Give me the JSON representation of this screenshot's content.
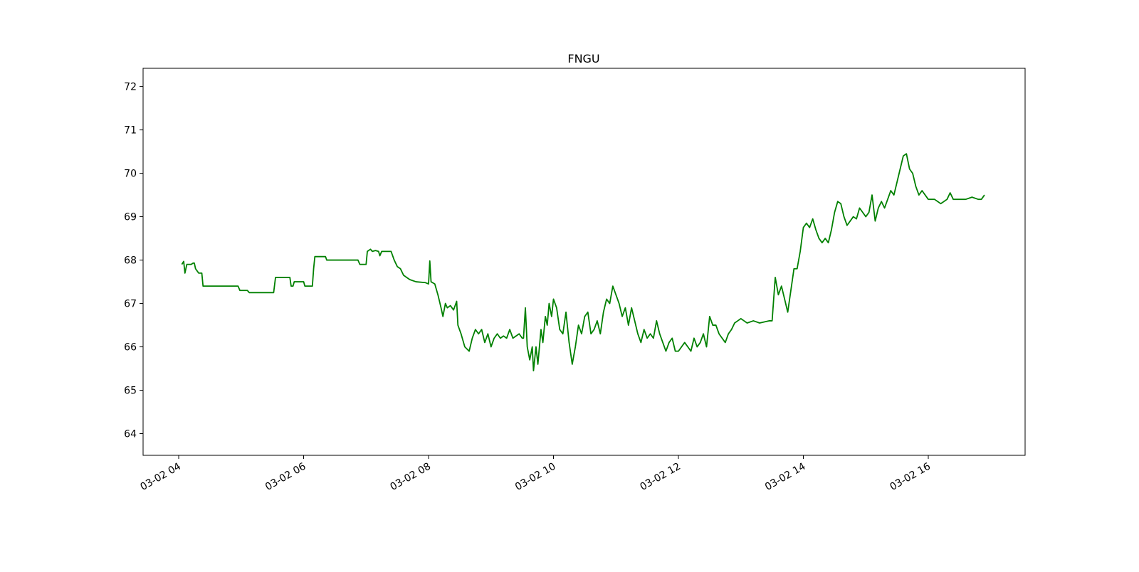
{
  "chart_data": {
    "type": "line",
    "title": "FNGU",
    "x": [
      4.05,
      4.08,
      4.1,
      4.13,
      4.2,
      4.23,
      4.25,
      4.27,
      4.32,
      4.37,
      4.39,
      4.95,
      4.98,
      5.1,
      5.13,
      5.52,
      5.55,
      5.78,
      5.8,
      5.83,
      5.85,
      6.0,
      6.02,
      6.14,
      6.16,
      6.18,
      6.35,
      6.37,
      6.87,
      6.9,
      7.0,
      7.02,
      7.07,
      7.1,
      7.15,
      7.2,
      7.22,
      7.25,
      7.4,
      7.45,
      7.5,
      7.55,
      7.6,
      7.65,
      7.7,
      7.8,
      7.95,
      8.0,
      8.02,
      8.04,
      8.1,
      8.15,
      8.2,
      8.23,
      8.27,
      8.3,
      8.35,
      8.4,
      8.45,
      8.47,
      8.52,
      8.58,
      8.65,
      8.7,
      8.75,
      8.8,
      8.85,
      8.9,
      8.95,
      9.0,
      9.05,
      9.1,
      9.15,
      9.2,
      9.25,
      9.3,
      9.35,
      9.45,
      9.5,
      9.52,
      9.55,
      9.58,
      9.62,
      9.66,
      9.68,
      9.72,
      9.75,
      9.8,
      9.83,
      9.87,
      9.9,
      9.93,
      9.97,
      10.0,
      10.05,
      10.1,
      10.15,
      10.2,
      10.25,
      10.3,
      10.35,
      10.4,
      10.45,
      10.5,
      10.55,
      10.6,
      10.65,
      10.7,
      10.75,
      10.8,
      10.85,
      10.9,
      10.95,
      11.0,
      11.05,
      11.1,
      11.15,
      11.2,
      11.25,
      11.3,
      11.35,
      11.4,
      11.45,
      11.5,
      11.55,
      11.6,
      11.65,
      11.7,
      11.75,
      11.8,
      11.85,
      11.9,
      11.95,
      12.0,
      12.05,
      12.1,
      12.15,
      12.2,
      12.25,
      12.3,
      12.35,
      12.4,
      12.45,
      12.5,
      12.55,
      12.6,
      12.65,
      12.7,
      12.75,
      12.8,
      12.85,
      12.9,
      12.95,
      13.0,
      13.05,
      13.1,
      13.2,
      13.3,
      13.45,
      13.5,
      13.55,
      13.6,
      13.65,
      13.7,
      13.75,
      13.8,
      13.85,
      13.9,
      13.95,
      14.0,
      14.05,
      14.1,
      14.15,
      14.2,
      14.25,
      14.3,
      14.35,
      14.4,
      14.45,
      14.5,
      14.55,
      14.6,
      14.65,
      14.7,
      14.75,
      14.8,
      14.85,
      14.9,
      14.95,
      15.0,
      15.05,
      15.1,
      15.15,
      15.2,
      15.25,
      15.3,
      15.35,
      15.4,
      15.45,
      15.5,
      15.55,
      15.6,
      15.65,
      15.7,
      15.75,
      15.8,
      15.85,
      15.9,
      15.95,
      16.0,
      16.1,
      16.2,
      16.3,
      16.35,
      16.4,
      16.5,
      16.6,
      16.7,
      16.8,
      16.85,
      16.9
    ],
    "series": [
      {
        "color": "#008000",
        "values": [
          67.9,
          67.97,
          67.7,
          67.9,
          67.9,
          67.93,
          67.93,
          67.8,
          67.7,
          67.7,
          67.4,
          67.4,
          67.3,
          67.3,
          67.25,
          67.25,
          67.6,
          67.6,
          67.4,
          67.4,
          67.5,
          67.5,
          67.4,
          67.4,
          67.8,
          68.08,
          68.08,
          68.0,
          68.0,
          67.9,
          67.9,
          68.2,
          68.25,
          68.2,
          68.22,
          68.2,
          68.1,
          68.2,
          68.2,
          68.0,
          67.85,
          67.8,
          67.65,
          67.6,
          67.55,
          67.5,
          67.48,
          67.45,
          67.98,
          67.5,
          67.45,
          67.2,
          66.9,
          66.7,
          67.0,
          66.9,
          66.95,
          66.85,
          67.05,
          66.5,
          66.3,
          66.0,
          65.9,
          66.2,
          66.4,
          66.3,
          66.4,
          66.1,
          66.3,
          66.0,
          66.2,
          66.3,
          66.2,
          66.25,
          66.2,
          66.4,
          66.2,
          66.3,
          66.2,
          66.2,
          66.9,
          66.0,
          65.7,
          66.0,
          65.45,
          66.0,
          65.6,
          66.4,
          66.1,
          66.7,
          66.5,
          67.0,
          66.7,
          67.1,
          66.9,
          66.4,
          66.3,
          66.8,
          66.1,
          65.6,
          66.0,
          66.5,
          66.3,
          66.7,
          66.8,
          66.3,
          66.4,
          66.6,
          66.3,
          66.8,
          67.1,
          67.0,
          67.4,
          67.2,
          67.0,
          66.7,
          66.9,
          66.5,
          66.9,
          66.6,
          66.3,
          66.1,
          66.4,
          66.2,
          66.3,
          66.2,
          66.6,
          66.3,
          66.1,
          65.9,
          66.1,
          66.2,
          65.9,
          65.9,
          66.0,
          66.1,
          66.0,
          65.9,
          66.2,
          66.0,
          66.1,
          66.3,
          66.0,
          66.7,
          66.5,
          66.5,
          66.3,
          66.2,
          66.1,
          66.3,
          66.4,
          66.55,
          66.6,
          66.65,
          66.6,
          66.55,
          66.6,
          66.55,
          66.6,
          66.6,
          67.6,
          67.2,
          67.4,
          67.1,
          66.8,
          67.3,
          67.8,
          67.8,
          68.2,
          68.75,
          68.85,
          68.75,
          68.95,
          68.7,
          68.5,
          68.4,
          68.5,
          68.4,
          68.7,
          69.1,
          69.35,
          69.3,
          69.0,
          68.8,
          68.9,
          69.0,
          68.95,
          69.2,
          69.1,
          69.0,
          69.1,
          69.5,
          68.9,
          69.2,
          69.35,
          69.2,
          69.4,
          69.6,
          69.5,
          69.8,
          70.1,
          70.4,
          70.45,
          70.1,
          70.0,
          69.7,
          69.5,
          69.6,
          69.5,
          69.4,
          69.4,
          69.3,
          69.4,
          69.55,
          69.4,
          69.4,
          69.4,
          69.45,
          69.4,
          69.4,
          69.5
        ]
      }
    ],
    "xlim": [
      3.43,
      17.55
    ],
    "xticks": [
      {
        "value": 4,
        "label": "03-02 04"
      },
      {
        "value": 6,
        "label": "03-02 06"
      },
      {
        "value": 8,
        "label": "03-02 08"
      },
      {
        "value": 10,
        "label": "03-02 10"
      },
      {
        "value": 12,
        "label": "03-02 12"
      },
      {
        "value": 14,
        "label": "03-02 14"
      },
      {
        "value": 16,
        "label": "03-02 16"
      }
    ],
    "ylim": [
      63.5,
      72.42
    ],
    "yticks": [
      64,
      65,
      66,
      67,
      68,
      69,
      70,
      71,
      72
    ],
    "grid": false
  }
}
